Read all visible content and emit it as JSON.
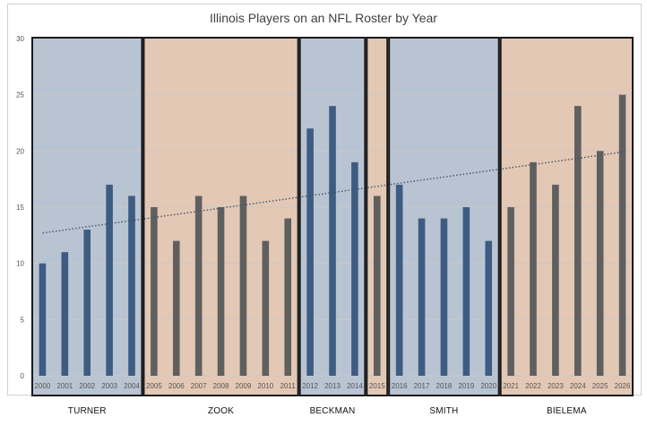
{
  "chart_data": {
    "type": "bar",
    "title": "Illinois Players on an NFL Roster by Year",
    "xlabel": "",
    "ylabel": "",
    "ylim": [
      0,
      30
    ],
    "yticks": [
      0,
      5,
      10,
      15,
      20,
      25,
      30
    ],
    "grid": true,
    "legend": "none",
    "categories": [
      "2000",
      "2001",
      "2002",
      "2003",
      "2004",
      "2005",
      "2006",
      "2007",
      "2008",
      "2009",
      "2010",
      "2011",
      "2012",
      "2013",
      "2014",
      "2015",
      "2016",
      "2017",
      "2018",
      "2019",
      "2020",
      "2021",
      "2022",
      "2023",
      "2024",
      "2025",
      "2026"
    ],
    "values": [
      10,
      11,
      13,
      17,
      16,
      15,
      12,
      16,
      15,
      16,
      12,
      14,
      22,
      24,
      19,
      16,
      17,
      14,
      14,
      15,
      12,
      15,
      19,
      17,
      24,
      20,
      25
    ],
    "trendline": {
      "style": "dotted",
      "type": "linear",
      "start": 12.7,
      "end": 19.9
    },
    "eras": [
      {
        "name": "TURNER",
        "from": "2000",
        "to": "2004"
      },
      {
        "name": "ZOOK",
        "from": "2005",
        "to": "2011"
      },
      {
        "name": "BECKMAN",
        "from": "2012",
        "to": "2014"
      },
      {
        "name": "",
        "from": "2015",
        "to": "2015"
      },
      {
        "name": "SMITH",
        "from": "2016",
        "to": "2020"
      },
      {
        "name": "BIELEMA",
        "from": "2021",
        "to": "2026"
      }
    ],
    "colors": {
      "blue_bar": "#3e5c82",
      "gray_bar": "#5f5f5f",
      "blue_era": "#b9c4d3",
      "tan_era": "#e3c8b5",
      "era_border": "#1a1a1a",
      "grid": "#c8c8c8",
      "trend": "#44546a"
    }
  }
}
